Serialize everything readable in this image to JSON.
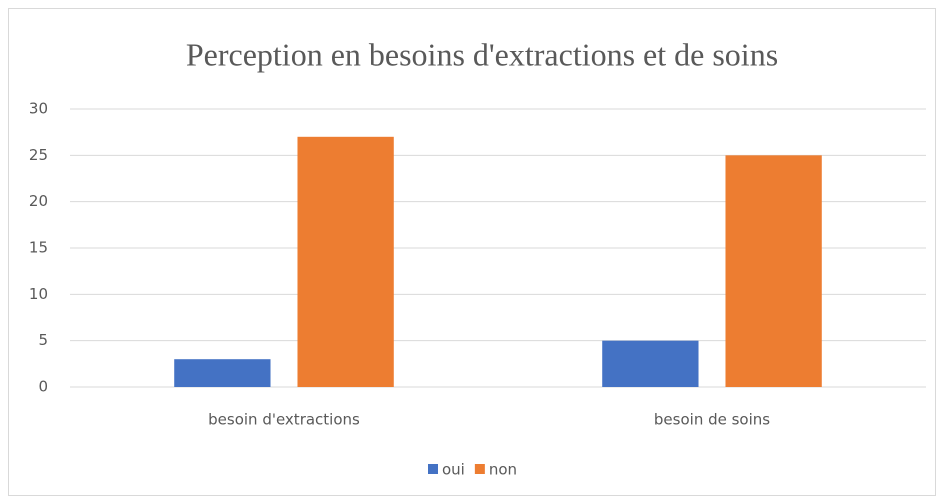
{
  "chart_data": {
    "type": "bar",
    "title": "Perception en besoins d'extractions et de soins",
    "categories": [
      "besoin d'extractions",
      "besoin de soins"
    ],
    "series": [
      {
        "name": "oui",
        "color": "#4472c4",
        "values": [
          3,
          5
        ]
      },
      {
        "name": "non",
        "color": "#ed7d31",
        "values": [
          27,
          25
        ]
      }
    ],
    "ylim": [
      0,
      30
    ],
    "yticks": [
      0,
      5,
      10,
      15,
      20,
      25,
      30
    ],
    "grid": true,
    "legend": "bottom"
  }
}
